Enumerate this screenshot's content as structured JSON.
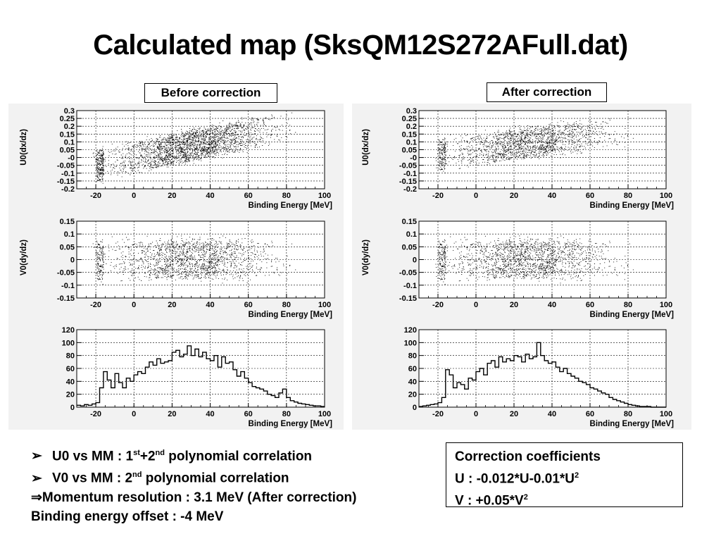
{
  "slide": {
    "title": "Calculated map (SksQM12S272AFull.dat)",
    "caption_before": "Before correction",
    "caption_after": "After correction"
  },
  "notes": {
    "line1_pre": "U0 vs MM : 1",
    "line1_sup1": "st",
    "line1_mid": "+2",
    "line1_sup2": "nd",
    "line1_post": " polynomial correlation",
    "line2_pre": "V0 vs MM : 2",
    "line2_sup": "nd",
    "line2_post": " polynomial correlation",
    "line3": "⇒Momentum  resolution : 3.1 MeV (After correction)",
    "line4": "Binding energy offset : -4 MeV"
  },
  "coefficients": {
    "heading": "Correction coefficients",
    "u_pre": "U  : -0.012*U-0.01*U",
    "u_sup": "2",
    "v_pre": "V  : +0.05*V",
    "v_sup": "2"
  },
  "colors": {
    "marker": "#000000",
    "grid": "#000000",
    "background": "#ffffff"
  },
  "chart_data": [
    {
      "type": "scatter",
      "panel": "before",
      "title": "",
      "xlabel": "Binding Energy [MeV]",
      "ylabel": "U0(dx/dz)",
      "xlim": [
        -30,
        100
      ],
      "ylim": [
        -0.2,
        0.3
      ],
      "xticks": [
        "-20",
        "0",
        "20",
        "40",
        "60",
        "80",
        "100"
      ],
      "yticks": [
        "-0.2",
        "-0.15",
        "-0.1",
        "-0.05",
        "-0",
        "0.05",
        "0.1",
        "0.15",
        "0.2",
        "0.25",
        "0.3"
      ],
      "grid": true,
      "density": {
        "x_range": [
          -20,
          80
        ],
        "x_peak": 30,
        "y_center_at_x0": 0.0,
        "y_center_slope_per_MeV": 0.0025,
        "y_spread": 0.09
      }
    },
    {
      "type": "scatter",
      "panel": "before",
      "title": "",
      "xlabel": "Binding Energy [MeV]",
      "ylabel": "V0(dy/dz)",
      "xlim": [
        -30,
        100
      ],
      "ylim": [
        -0.15,
        0.15
      ],
      "xticks": [
        "-20",
        "0",
        "20",
        "40",
        "60",
        "80",
        "100"
      ],
      "yticks": [
        "-0.15",
        "-0.1",
        "-0.05",
        "0",
        "0.05",
        "0.1",
        "0.15"
      ],
      "grid": true,
      "density": {
        "x_range": [
          -20,
          80
        ],
        "x_peak": 30,
        "y_center_at_x0": 0.0,
        "y_center_slope_per_MeV": 0.0,
        "y_spread": 0.07
      }
    },
    {
      "type": "bar",
      "panel": "before",
      "title": "",
      "xlabel": "Binding Energy [MeV]",
      "ylabel": "",
      "xlim": [
        -30,
        100
      ],
      "ylim": [
        0,
        120
      ],
      "xticks": [
        "-20",
        "0",
        "20",
        "40",
        "60",
        "80",
        "100"
      ],
      "yticks": [
        "0",
        "20",
        "40",
        "60",
        "80",
        "100",
        "120"
      ],
      "grid": true,
      "bin_width": 1,
      "x": [
        -30,
        -28,
        -26,
        -24,
        -22,
        -20,
        -18,
        -16,
        -14,
        -12,
        -10,
        -8,
        -6,
        -4,
        -2,
        0,
        2,
        4,
        6,
        8,
        10,
        12,
        14,
        16,
        18,
        20,
        22,
        24,
        26,
        28,
        30,
        32,
        34,
        36,
        38,
        40,
        42,
        44,
        46,
        48,
        50,
        52,
        54,
        56,
        58,
        60,
        62,
        64,
        66,
        68,
        70,
        72,
        74,
        76,
        78,
        80,
        82,
        84,
        86,
        88,
        90,
        92,
        94,
        96,
        98
      ],
      "values": [
        3,
        2,
        4,
        3,
        5,
        7,
        30,
        55,
        42,
        30,
        52,
        38,
        30,
        45,
        40,
        50,
        55,
        52,
        62,
        70,
        65,
        75,
        68,
        70,
        72,
        85,
        88,
        78,
        82,
        95,
        80,
        90,
        78,
        85,
        75,
        72,
        80,
        62,
        78,
        68,
        70,
        58,
        48,
        55,
        45,
        38,
        32,
        30,
        28,
        25,
        20,
        18,
        15,
        22,
        28,
        15,
        10,
        8,
        6,
        5,
        4,
        3,
        2,
        2,
        1
      ]
    },
    {
      "type": "scatter",
      "panel": "after",
      "title": "",
      "xlabel": "Binding Energy [MeV]",
      "ylabel": "U0(dx/dz)",
      "xlim": [
        -30,
        100
      ],
      "ylim": [
        -0.2,
        0.3
      ],
      "xticks": [
        "-20",
        "0",
        "20",
        "40",
        "60",
        "80",
        "100"
      ],
      "yticks": [
        "-0.2",
        "-0.15",
        "-0.1",
        "-0.05",
        "-0",
        "0.05",
        "0.1",
        "0.15",
        "0.2",
        "0.25",
        "0.3"
      ],
      "grid": true,
      "density": {
        "x_range": [
          -20,
          80
        ],
        "x_peak": 28,
        "y_center_at_x0": 0.05,
        "y_center_slope_per_MeV": 0.0015,
        "y_spread": 0.09
      }
    },
    {
      "type": "scatter",
      "panel": "after",
      "title": "",
      "xlabel": "Binding Energy [MeV]",
      "ylabel": "V0(dy/dz)",
      "xlim": [
        -30,
        100
      ],
      "ylim": [
        -0.15,
        0.15
      ],
      "xticks": [
        "-20",
        "0",
        "20",
        "40",
        "60",
        "80",
        "100"
      ],
      "yticks": [
        "-0.15",
        "-0.1",
        "-0.05",
        "0",
        "0.05",
        "0.1",
        "0.15"
      ],
      "grid": true,
      "density": {
        "x_range": [
          -20,
          80
        ],
        "x_peak": 28,
        "y_center_at_x0": 0.0,
        "y_center_slope_per_MeV": 0.0,
        "y_spread": 0.07
      }
    },
    {
      "type": "bar",
      "panel": "after",
      "title": "",
      "xlabel": "Binding Energy [MeV]",
      "ylabel": "",
      "xlim": [
        -30,
        100
      ],
      "ylim": [
        0,
        120
      ],
      "xticks": [
        "-20",
        "0",
        "20",
        "40",
        "60",
        "80",
        "100"
      ],
      "yticks": [
        "0",
        "20",
        "40",
        "60",
        "80",
        "100",
        "120"
      ],
      "grid": true,
      "bin_width": 1,
      "x": [
        -30,
        -28,
        -26,
        -24,
        -22,
        -20,
        -18,
        -16,
        -14,
        -12,
        -10,
        -8,
        -6,
        -4,
        -2,
        0,
        2,
        4,
        6,
        8,
        10,
        12,
        14,
        16,
        18,
        20,
        22,
        24,
        26,
        28,
        30,
        32,
        34,
        36,
        38,
        40,
        42,
        44,
        46,
        48,
        50,
        52,
        54,
        56,
        58,
        60,
        62,
        64,
        66,
        68,
        70,
        72,
        74,
        76,
        78,
        80,
        82,
        84,
        86,
        88,
        90,
        92,
        94,
        96,
        98
      ],
      "values": [
        1,
        2,
        3,
        4,
        5,
        7,
        15,
        58,
        50,
        30,
        38,
        35,
        28,
        45,
        42,
        55,
        60,
        50,
        68,
        72,
        62,
        78,
        70,
        75,
        72,
        80,
        78,
        70,
        82,
        75,
        78,
        100,
        80,
        72,
        68,
        70,
        62,
        55,
        60,
        52,
        48,
        45,
        40,
        38,
        35,
        30,
        28,
        25,
        22,
        20,
        15,
        12,
        10,
        8,
        6,
        4,
        3,
        2,
        1,
        1,
        1,
        0,
        0,
        0,
        0
      ]
    }
  ]
}
